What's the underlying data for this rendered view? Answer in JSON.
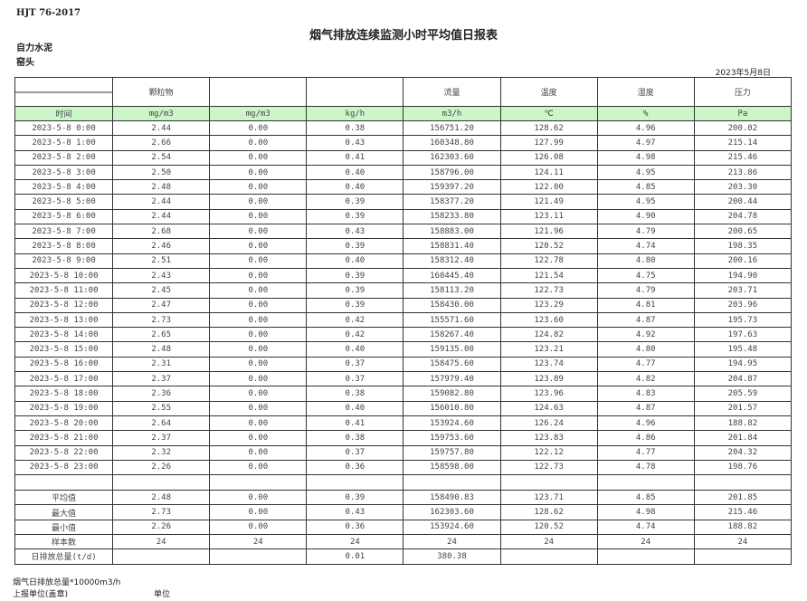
{
  "standard": "HJT  76-2017",
  "title": "烟气排放连续监测小时平均值日报表",
  "company": "自力水泥",
  "location": "窑头",
  "report_date": "2023年5月8日",
  "headers": [
    "",
    "颗粒物",
    "",
    "",
    "流量",
    "温度",
    "湿度",
    "压力"
  ],
  "units": [
    "时间",
    "mg/m3",
    "mg/m3",
    "kg/h",
    "m3/h",
    "℃",
    "%",
    "Pa"
  ],
  "rows": [
    [
      "2023-5-8 0:00",
      "2.44",
      "0.00",
      "0.38",
      "156751.20",
      "128.62",
      "4.96",
      "200.02"
    ],
    [
      "2023-5-8 1:00",
      "2.66",
      "0.00",
      "0.43",
      "160348.80",
      "127.99",
      "4.97",
      "215.14"
    ],
    [
      "2023-5-8 2:00",
      "2.54",
      "0.00",
      "0.41",
      "162303.60",
      "126.08",
      "4.98",
      "215.46"
    ],
    [
      "2023-5-8 3:00",
      "2.50",
      "0.00",
      "0.40",
      "158796.00",
      "124.11",
      "4.95",
      "213.86"
    ],
    [
      "2023-5-8 4:00",
      "2.48",
      "0.00",
      "0.40",
      "159397.20",
      "122.00",
      "4.85",
      "203.30"
    ],
    [
      "2023-5-8 5:00",
      "2.44",
      "0.00",
      "0.39",
      "158377.20",
      "121.49",
      "4.95",
      "200.44"
    ],
    [
      "2023-5-8 6:00",
      "2.44",
      "0.00",
      "0.39",
      "158233.80",
      "123.11",
      "4.90",
      "204.78"
    ],
    [
      "2023-5-8 7:00",
      "2.68",
      "0.00",
      "0.43",
      "158883.00",
      "121.96",
      "4.79",
      "200.65"
    ],
    [
      "2023-5-8 8:00",
      "2.46",
      "0.00",
      "0.39",
      "158831.40",
      "120.52",
      "4.74",
      "198.35"
    ],
    [
      "2023-5-8 9:00",
      "2.51",
      "0.00",
      "0.40",
      "158312.40",
      "122.78",
      "4.80",
      "200.16"
    ],
    [
      "2023-5-8 10:00",
      "2.43",
      "0.00",
      "0.39",
      "160445.40",
      "121.54",
      "4.75",
      "194.90"
    ],
    [
      "2023-5-8 11:00",
      "2.45",
      "0.00",
      "0.39",
      "158113.20",
      "122.73",
      "4.79",
      "203.71"
    ],
    [
      "2023-5-8 12:00",
      "2.47",
      "0.00",
      "0.39",
      "158430.00",
      "123.29",
      "4.81",
      "203.96"
    ],
    [
      "2023-5-8 13:00",
      "2.73",
      "0.00",
      "0.42",
      "155571.60",
      "123.60",
      "4.87",
      "195.73"
    ],
    [
      "2023-5-8 14:00",
      "2.65",
      "0.00",
      "0.42",
      "158267.40",
      "124.82",
      "4.92",
      "197.63"
    ],
    [
      "2023-5-8 15:00",
      "2.48",
      "0.00",
      "0.40",
      "159135.00",
      "123.21",
      "4.80",
      "195.48"
    ],
    [
      "2023-5-8 16:00",
      "2.31",
      "0.00",
      "0.37",
      "158475.60",
      "123.74",
      "4.77",
      "194.95"
    ],
    [
      "2023-5-8 17:00",
      "2.37",
      "0.00",
      "0.37",
      "157979.40",
      "123.89",
      "4.82",
      "204.87"
    ],
    [
      "2023-5-8 18:00",
      "2.36",
      "0.00",
      "0.38",
      "159082.80",
      "123.96",
      "4.83",
      "205.59"
    ],
    [
      "2023-5-8 19:00",
      "2.55",
      "0.00",
      "0.40",
      "156010.80",
      "124.63",
      "4.87",
      "201.57"
    ],
    [
      "2023-5-8 20:00",
      "2.64",
      "0.00",
      "0.41",
      "153924.60",
      "126.24",
      "4.96",
      "188.82"
    ],
    [
      "2023-5-8 21:00",
      "2.37",
      "0.00",
      "0.38",
      "159753.60",
      "123.83",
      "4.86",
      "201.84"
    ],
    [
      "2023-5-8 22:00",
      "2.32",
      "0.00",
      "0.37",
      "159757.80",
      "122.12",
      "4.77",
      "204.32"
    ],
    [
      "2023-5-8 23:00",
      "2.26",
      "0.00",
      "0.36",
      "158598.00",
      "122.73",
      "4.78",
      "198.76"
    ]
  ],
  "stats": [
    [
      "平均值",
      "2.48",
      "0.00",
      "0.39",
      "158490.83",
      "123.71",
      "4.85",
      "201.85"
    ],
    [
      "最大值",
      "2.73",
      "0.00",
      "0.43",
      "162303.60",
      "128.62",
      "4.98",
      "215.46"
    ],
    [
      "最小值",
      "2.26",
      "0.00",
      "0.36",
      "153924.60",
      "120.52",
      "4.74",
      "188.82"
    ],
    [
      "样本数",
      "24",
      "24",
      "24",
      "24",
      "24",
      "24",
      "24"
    ],
    [
      "日排放总量(t/d)",
      "",
      "",
      "0.01",
      "380.38",
      "",
      "",
      ""
    ]
  ],
  "footer": {
    "note": "烟气日排放总量*10000m3/h",
    "reporter": "上报单位(盖章)",
    "unit": "单位"
  },
  "colors": {
    "unit_row_bg": "#ccf5c8"
  }
}
